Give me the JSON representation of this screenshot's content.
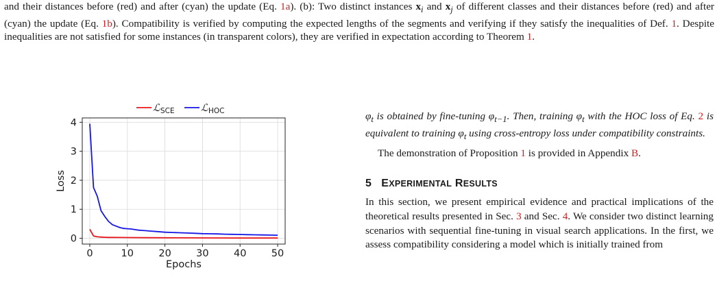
{
  "caption": {
    "line1_a": "and their distances before (red) and after (cyan) the update (Eq. ",
    "line1_ref1": "1a",
    "line1_b": "). (b): Two distinct instances ",
    "xi": "x",
    "xi_sub": "i",
    "line1_and": " and ",
    "xj": "x",
    "xj_sub": "j",
    "line1_c": " of different classes and their distances before (red) and after (cyan) the update (Eq. ",
    "line1_ref2": "1b",
    "line1_d": "). Compatibility is verified by computing the expected lengths of the segments and verifying if they satisfy the inequalities of Def. ",
    "line1_ref3": "1",
    "line1_e": ". Despite inequalities are not satisfied for some instances (in transparent colors), they are verified in expectation according to Theorem ",
    "line1_ref4": "1",
    "line1_f": "."
  },
  "chart_data": {
    "type": "line",
    "xlabel": "Epochs",
    "ylabel": "Loss",
    "xlim": [
      -2,
      52
    ],
    "ylim": [
      -0.2,
      4.15
    ],
    "xticks": [
      "0",
      "10",
      "20",
      "30",
      "40",
      "50"
    ],
    "xtick_values": [
      0,
      10,
      20,
      30,
      40,
      50
    ],
    "yticks": [
      "0",
      "1",
      "2",
      "3",
      "4"
    ],
    "ytick_values": [
      0,
      1,
      2,
      3,
      4
    ],
    "grid": true,
    "legend_position": "top",
    "series": [
      {
        "name": "SCE",
        "color": "#e8161c",
        "x": [
          0,
          1,
          2,
          3,
          4,
          5,
          6,
          8,
          10,
          15,
          20,
          25,
          30,
          35,
          40,
          45,
          50
        ],
        "y": [
          0.31,
          0.08,
          0.05,
          0.04,
          0.035,
          0.03,
          0.03,
          0.028,
          0.025,
          0.02,
          0.018,
          0.015,
          0.012,
          0.01,
          0.009,
          0.008,
          0.007
        ]
      },
      {
        "name": "HOC",
        "color": "#1515e6",
        "x": [
          0,
          1,
          2,
          3,
          4,
          5,
          6,
          7,
          8,
          9,
          10,
          11,
          12,
          13,
          14,
          15,
          16,
          18,
          20,
          22,
          24,
          26,
          28,
          30,
          32,
          34,
          36,
          38,
          40,
          42,
          44,
          46,
          48,
          50
        ],
        "y": [
          3.95,
          1.75,
          1.45,
          0.95,
          0.75,
          0.58,
          0.47,
          0.42,
          0.37,
          0.34,
          0.33,
          0.32,
          0.3,
          0.28,
          0.27,
          0.26,
          0.25,
          0.23,
          0.21,
          0.2,
          0.19,
          0.18,
          0.17,
          0.16,
          0.155,
          0.15,
          0.14,
          0.135,
          0.13,
          0.125,
          0.12,
          0.115,
          0.11,
          0.105
        ]
      }
    ]
  },
  "right": {
    "prop_a": "is obtained by fine-tuning ",
    "prop_b": ". Then, training ",
    "prop_c": " with the HOC loss of Eq. ",
    "prop_ref": "2",
    "prop_d": " is equivalent to training ",
    "prop_e": " using cross-entropy loss under compatibility constraints.",
    "phi": "φ",
    "sub_t": "t",
    "sub_t1": "t−1",
    "demo_a": "The demonstration of Proposition ",
    "demo_ref1": "1",
    "demo_b": " is provided in Appendix ",
    "demo_ref2": "B",
    "demo_c": ".",
    "section_num": "5",
    "section_e": "E",
    "section_xperimental": "XPERIMENTAL",
    "section_r": "R",
    "section_esults": "ESULTS",
    "body_a": "In this section, we present empirical evidence and practical implications of the theoretical results presented in Sec. ",
    "body_ref1": "3",
    "body_b": " and Sec. ",
    "body_ref2": "4",
    "body_c": ". We consider two distinct learning scenarios with sequential fine-tuning in visual search applications. In the first, we assess compatibility considering a model which is initially trained from"
  }
}
